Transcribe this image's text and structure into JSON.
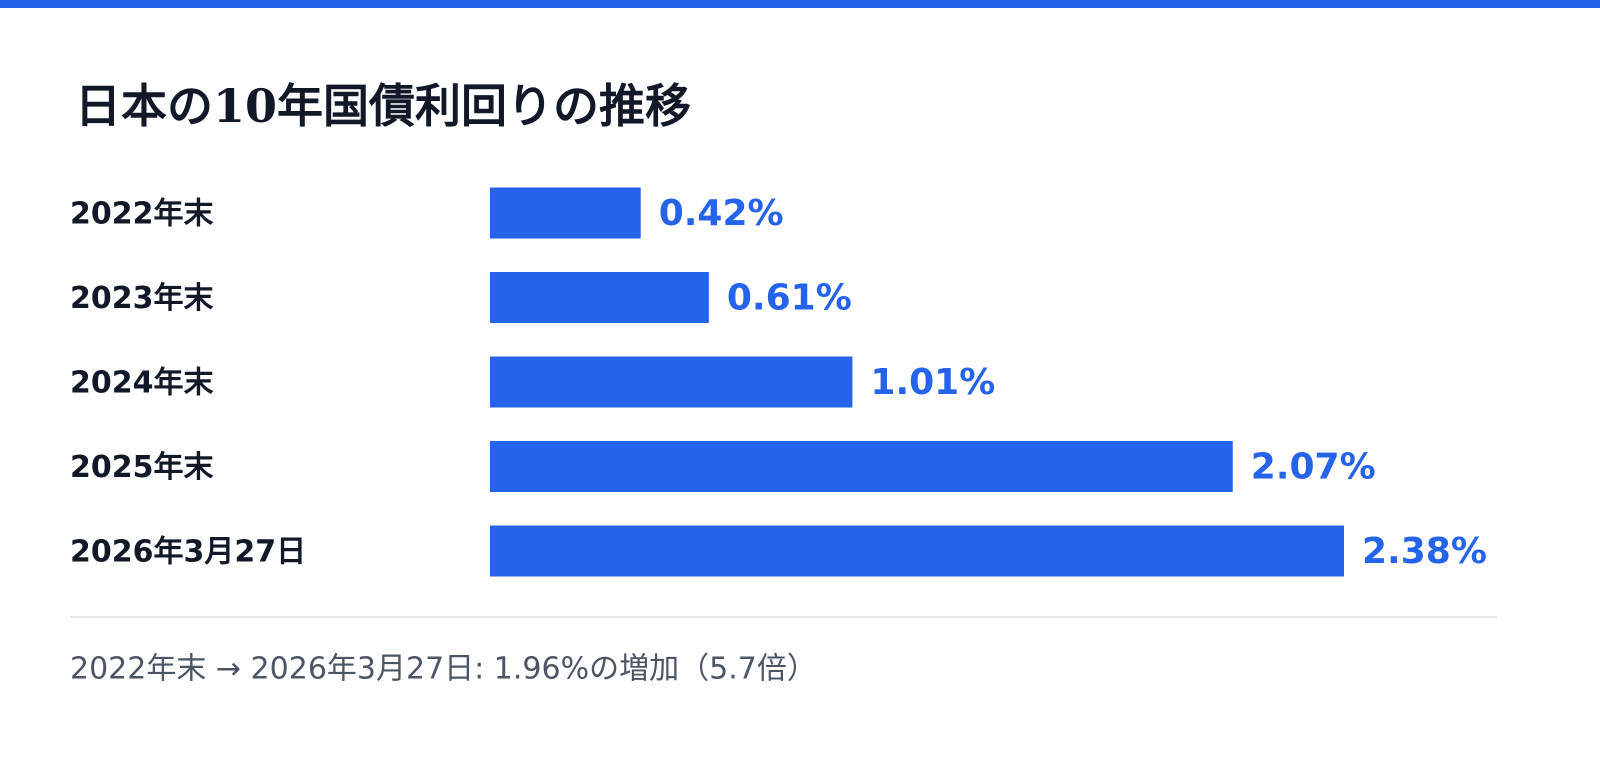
{
  "chart_data": {
    "type": "bar",
    "orientation": "horizontal",
    "title": "日本の10年国債利回りの推移",
    "categories": [
      "2022年末",
      "2023年末",
      "2024年末",
      "2025年末",
      "2026年3月27日"
    ],
    "values": [
      0.42,
      0.61,
      1.01,
      2.07,
      2.38
    ],
    "value_labels": [
      "0.42%",
      "0.61%",
      "1.01%",
      "2.07%",
      "2.38%"
    ],
    "color": "#2563eb",
    "note": "2022年末 → 2026年3月27日: 1.96%の増加（5.7倍）"
  }
}
